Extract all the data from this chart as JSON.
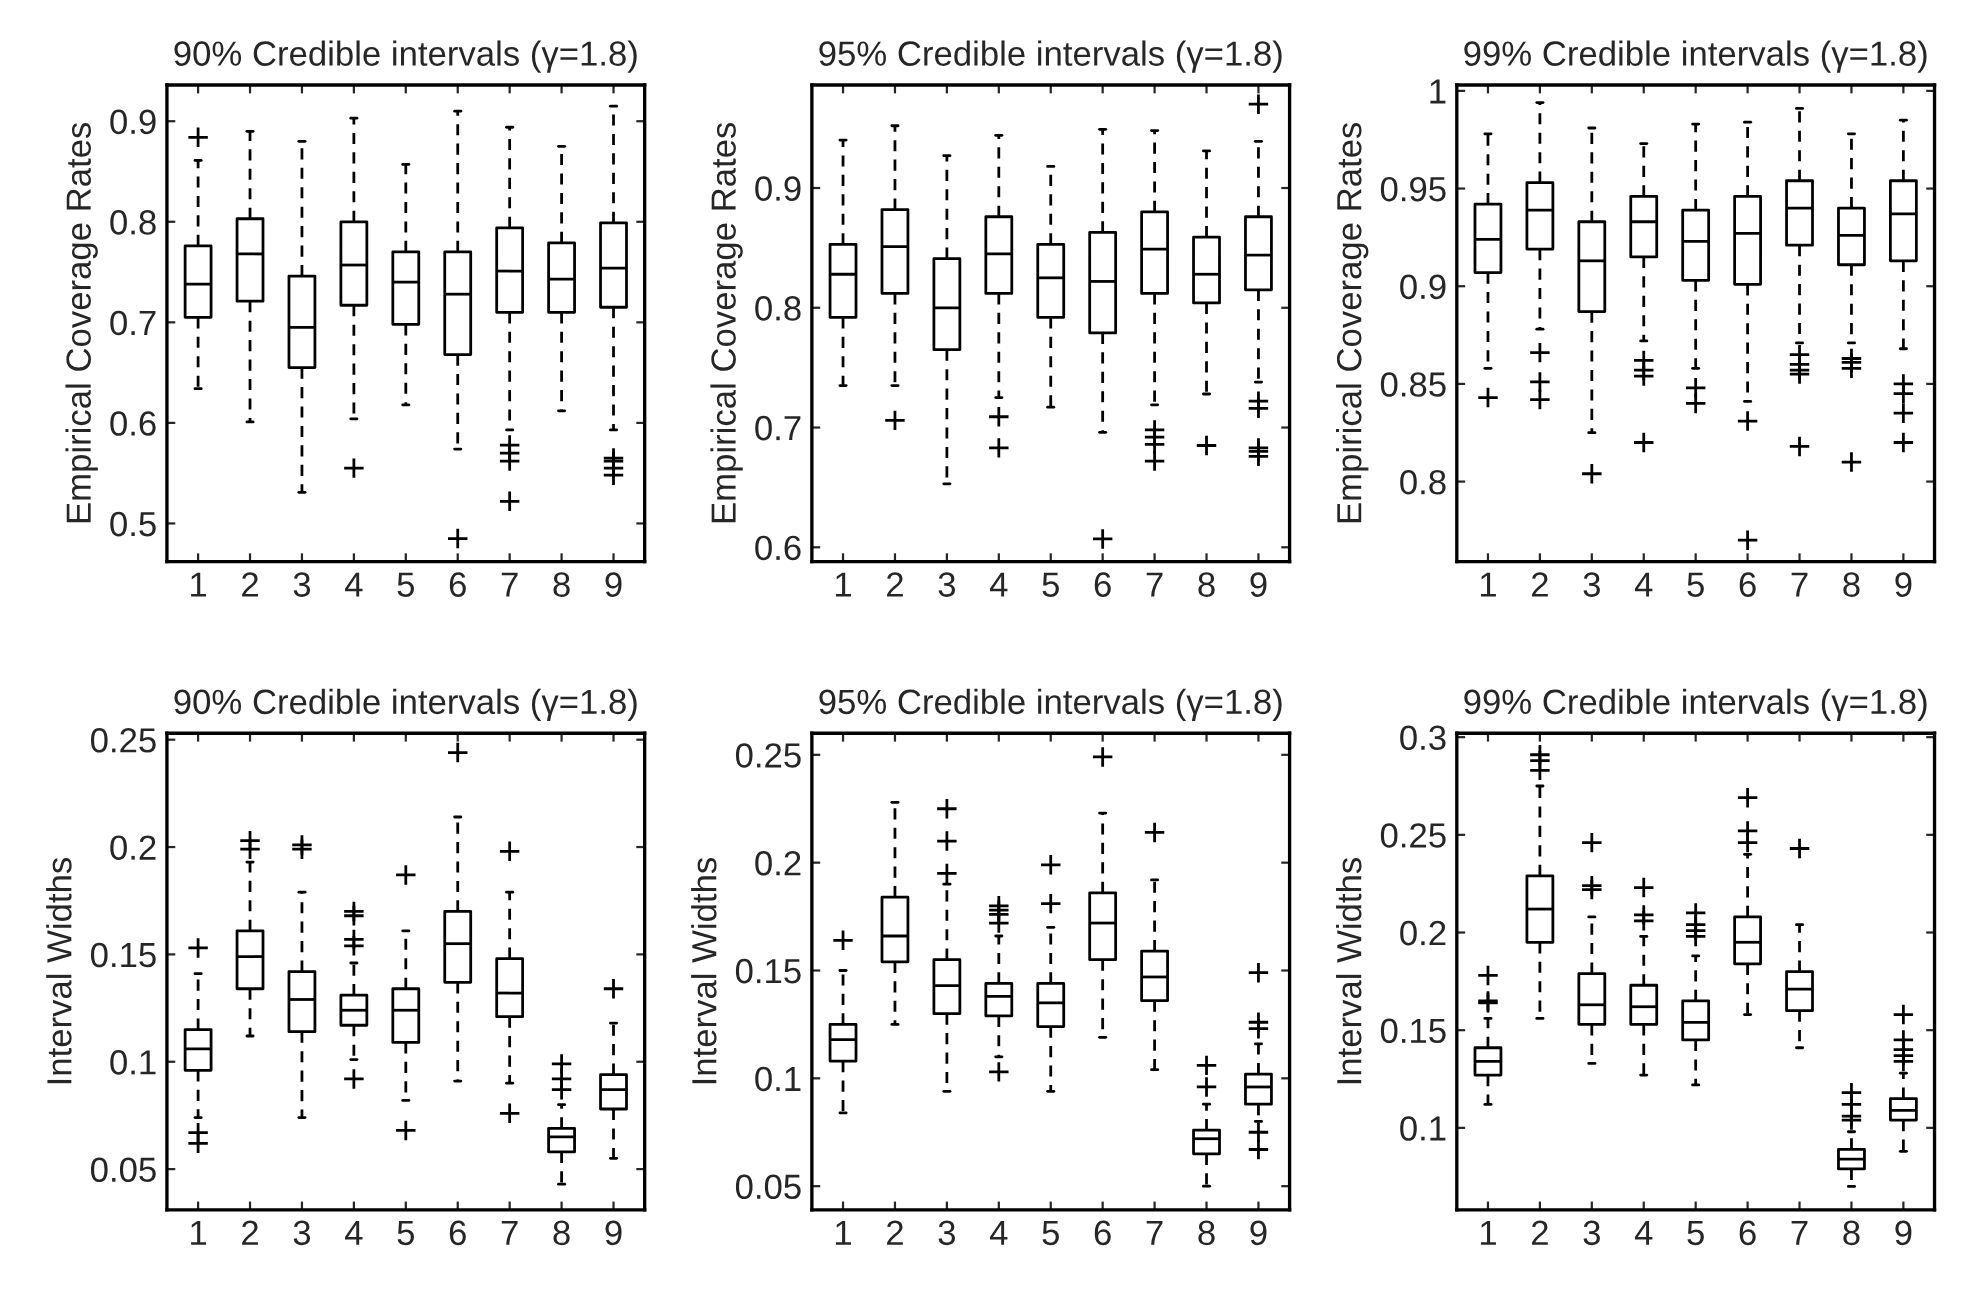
{
  "chart_data": [
    {
      "type": "box",
      "title": "90% Credible intervals (γ=1.8)",
      "ylabel": "Empirical Coverage Rates",
      "categories": [
        "1",
        "2",
        "3",
        "4",
        "5",
        "6",
        "7",
        "8",
        "9"
      ],
      "ylim": [
        0.462,
        0.936
      ],
      "yticks": [
        0.5,
        0.6,
        0.7,
        0.8,
        0.9
      ],
      "grid": false,
      "boxes": [
        {
          "low": 0.634,
          "q1": 0.705,
          "median": 0.738,
          "q3": 0.776,
          "high": 0.861,
          "outliers": [
            0.884
          ]
        },
        {
          "low": 0.601,
          "q1": 0.721,
          "median": 0.768,
          "q3": 0.803,
          "high": 0.89
        },
        {
          "low": 0.531,
          "q1": 0.655,
          "median": 0.695,
          "q3": 0.746,
          "high": 0.88
        },
        {
          "low": 0.604,
          "q1": 0.717,
          "median": 0.757,
          "q3": 0.8,
          "high": 0.903,
          "outliers": [
            0.555
          ]
        },
        {
          "low": 0.618,
          "q1": 0.698,
          "median": 0.74,
          "q3": 0.77,
          "high": 0.857
        },
        {
          "low": 0.574,
          "q1": 0.668,
          "median": 0.728,
          "q3": 0.77,
          "high": 0.91,
          "outliers": [
            0.485
          ]
        },
        {
          "low": 0.593,
          "q1": 0.71,
          "median": 0.751,
          "q3": 0.794,
          "high": 0.894,
          "outliers": [
            0.578,
            0.57,
            0.562,
            0.522
          ]
        },
        {
          "low": 0.612,
          "q1": 0.71,
          "median": 0.743,
          "q3": 0.779,
          "high": 0.875
        },
        {
          "low": 0.593,
          "q1": 0.715,
          "median": 0.754,
          "q3": 0.799,
          "high": 0.915,
          "outliers": [
            0.565,
            0.562,
            0.555,
            0.548
          ]
        }
      ]
    },
    {
      "type": "box",
      "title": "95% Credible intervals (γ=1.8)",
      "ylabel": "Empirical Coverage Rates",
      "categories": [
        "1",
        "2",
        "3",
        "4",
        "5",
        "6",
        "7",
        "8",
        "9"
      ],
      "ylim": [
        0.588,
        0.986
      ],
      "yticks": [
        0.6,
        0.7,
        0.8,
        0.9
      ],
      "grid": false,
      "boxes": [
        {
          "low": 0.735,
          "q1": 0.792,
          "median": 0.828,
          "q3": 0.853,
          "high": 0.94
        },
        {
          "low": 0.735,
          "q1": 0.812,
          "median": 0.851,
          "q3": 0.882,
          "high": 0.952,
          "outliers": [
            0.706
          ]
        },
        {
          "low": 0.653,
          "q1": 0.765,
          "median": 0.8,
          "q3": 0.841,
          "high": 0.927
        },
        {
          "low": 0.725,
          "q1": 0.812,
          "median": 0.845,
          "q3": 0.876,
          "high": 0.944,
          "outliers": [
            0.709,
            0.683
          ]
        },
        {
          "low": 0.717,
          "q1": 0.792,
          "median": 0.825,
          "q3": 0.853,
          "high": 0.918
        },
        {
          "low": 0.696,
          "q1": 0.779,
          "median": 0.822,
          "q3": 0.863,
          "high": 0.949,
          "outliers": [
            0.607
          ]
        },
        {
          "low": 0.719,
          "q1": 0.812,
          "median": 0.849,
          "q3": 0.88,
          "high": 0.948,
          "outliers": [
            0.698,
            0.692,
            0.686,
            0.672
          ]
        },
        {
          "low": 0.728,
          "q1": 0.804,
          "median": 0.828,
          "q3": 0.859,
          "high": 0.931,
          "outliers": [
            0.685
          ]
        },
        {
          "low": 0.738,
          "q1": 0.815,
          "median": 0.844,
          "q3": 0.876,
          "high": 0.939,
          "outliers": [
            0.97,
            0.722,
            0.716,
            0.683,
            0.68,
            0.676
          ]
        }
      ]
    },
    {
      "type": "box",
      "title": "99% Credible intervals (γ=1.8)",
      "ylabel": "Empirical Coverage Rates",
      "categories": [
        "1",
        "2",
        "3",
        "4",
        "5",
        "6",
        "7",
        "8",
        "9"
      ],
      "ylim": [
        0.759,
        1.003
      ],
      "yticks": [
        0.8,
        0.85,
        0.9,
        0.95,
        1
      ],
      "grid": false,
      "boxes": [
        {
          "low": 0.858,
          "q1": 0.907,
          "median": 0.924,
          "q3": 0.942,
          "high": 0.978,
          "outliers": [
            0.843
          ]
        },
        {
          "low": 0.878,
          "q1": 0.919,
          "median": 0.939,
          "q3": 0.953,
          "high": 0.994,
          "outliers": [
            0.866,
            0.851,
            0.842
          ]
        },
        {
          "low": 0.825,
          "q1": 0.887,
          "median": 0.913,
          "q3": 0.933,
          "high": 0.981,
          "outliers": [
            0.804
          ]
        },
        {
          "low": 0.872,
          "q1": 0.915,
          "median": 0.933,
          "q3": 0.946,
          "high": 0.973,
          "outliers": [
            0.862,
            0.857,
            0.854,
            0.82
          ]
        },
        {
          "low": 0.858,
          "q1": 0.903,
          "median": 0.923,
          "q3": 0.939,
          "high": 0.983,
          "outliers": [
            0.848,
            0.84
          ]
        },
        {
          "low": 0.841,
          "q1": 0.901,
          "median": 0.927,
          "q3": 0.946,
          "high": 0.984,
          "outliers": [
            0.831,
            0.77
          ]
        },
        {
          "low": 0.871,
          "q1": 0.921,
          "median": 0.94,
          "q3": 0.954,
          "high": 0.991,
          "outliers": [
            0.865,
            0.86,
            0.857,
            0.855,
            0.818
          ]
        },
        {
          "low": 0.871,
          "q1": 0.911,
          "median": 0.926,
          "q3": 0.94,
          "high": 0.978,
          "outliers": [
            0.863,
            0.861,
            0.858,
            0.81
          ]
        },
        {
          "low": 0.868,
          "q1": 0.913,
          "median": 0.937,
          "q3": 0.954,
          "high": 0.985,
          "outliers": [
            0.85,
            0.845,
            0.835,
            0.82
          ]
        }
      ]
    },
    {
      "type": "box",
      "title": "90% Credible intervals (γ=1.8)",
      "ylabel": "Interval Widths",
      "categories": [
        "1",
        "2",
        "3",
        "4",
        "5",
        "6",
        "7",
        "8",
        "9"
      ],
      "ylim": [
        0.031,
        0.253
      ],
      "yticks": [
        0.05,
        0.1,
        0.15,
        0.2,
        0.25
      ],
      "grid": false,
      "boxes": [
        {
          "low": 0.074,
          "q1": 0.096,
          "median": 0.106,
          "q3": 0.115,
          "high": 0.141,
          "outliers": [
            0.153,
            0.067,
            0.062
          ]
        },
        {
          "low": 0.112,
          "q1": 0.134,
          "median": 0.149,
          "q3": 0.161,
          "high": 0.193,
          "outliers": [
            0.203,
            0.199
          ]
        },
        {
          "low": 0.074,
          "q1": 0.114,
          "median": 0.129,
          "q3": 0.142,
          "high": 0.179,
          "outliers": [
            0.201,
            0.199
          ]
        },
        {
          "low": 0.101,
          "q1": 0.117,
          "median": 0.124,
          "q3": 0.131,
          "high": 0.146,
          "outliers": [
            0.17,
            0.168,
            0.157,
            0.154,
            0.092
          ]
        },
        {
          "low": 0.082,
          "q1": 0.109,
          "median": 0.124,
          "q3": 0.134,
          "high": 0.161,
          "outliers": [
            0.187,
            0.068
          ]
        },
        {
          "low": 0.091,
          "q1": 0.137,
          "median": 0.155,
          "q3": 0.17,
          "high": 0.214,
          "outliers": [
            0.244
          ]
        },
        {
          "low": 0.09,
          "q1": 0.121,
          "median": 0.132,
          "q3": 0.148,
          "high": 0.179,
          "outliers": [
            0.198,
            0.076
          ]
        },
        {
          "low": 0.043,
          "q1": 0.058,
          "median": 0.065,
          "q3": 0.069,
          "high": 0.08,
          "outliers": [
            0.099,
            0.092,
            0.087
          ]
        },
        {
          "low": 0.055,
          "q1": 0.078,
          "median": 0.087,
          "q3": 0.094,
          "high": 0.118,
          "outliers": [
            0.134
          ]
        }
      ]
    },
    {
      "type": "box",
      "title": "95% Credible intervals (γ=1.8)",
      "ylabel": "Interval Widths",
      "categories": [
        "1",
        "2",
        "3",
        "4",
        "5",
        "6",
        "7",
        "8",
        "9"
      ],
      "ylim": [
        0.039,
        0.26
      ],
      "yticks": [
        0.05,
        0.1,
        0.15,
        0.2,
        0.25
      ],
      "grid": false,
      "boxes": [
        {
          "low": 0.084,
          "q1": 0.108,
          "median": 0.118,
          "q3": 0.125,
          "high": 0.15,
          "outliers": [
            0.164
          ]
        },
        {
          "low": 0.125,
          "q1": 0.154,
          "median": 0.166,
          "q3": 0.184,
          "high": 0.228
        },
        {
          "low": 0.094,
          "q1": 0.13,
          "median": 0.143,
          "q3": 0.155,
          "high": 0.19,
          "outliers": [
            0.225,
            0.21,
            0.195
          ]
        },
        {
          "low": 0.11,
          "q1": 0.129,
          "median": 0.138,
          "q3": 0.144,
          "high": 0.166,
          "outliers": [
            0.18,
            0.178,
            0.176,
            0.172,
            0.103
          ]
        },
        {
          "low": 0.094,
          "q1": 0.124,
          "median": 0.135,
          "q3": 0.144,
          "high": 0.17,
          "outliers": [
            0.199,
            0.181
          ]
        },
        {
          "low": 0.119,
          "q1": 0.155,
          "median": 0.172,
          "q3": 0.186,
          "high": 0.223,
          "outliers": [
            0.249
          ]
        },
        {
          "low": 0.104,
          "q1": 0.136,
          "median": 0.147,
          "q3": 0.159,
          "high": 0.192,
          "outliers": [
            0.214
          ]
        },
        {
          "low": 0.05,
          "q1": 0.065,
          "median": 0.072,
          "q3": 0.076,
          "high": 0.088,
          "outliers": [
            0.106,
            0.096
          ]
        },
        {
          "low": 0.08,
          "q1": 0.088,
          "median": 0.096,
          "q3": 0.102,
          "high": 0.116,
          "outliers": [
            0.149,
            0.126,
            0.123,
            0.075,
            0.067
          ]
        }
      ]
    },
    {
      "type": "box",
      "title": "99% Credible intervals (γ=1.8)",
      "ylabel": "Interval Widths",
      "categories": [
        "1",
        "2",
        "3",
        "4",
        "5",
        "6",
        "7",
        "8",
        "9"
      ],
      "ylim": [
        0.058,
        0.302
      ],
      "yticks": [
        0.1,
        0.15,
        0.2,
        0.25,
        0.3
      ],
      "grid": false,
      "boxes": [
        {
          "low": 0.112,
          "q1": 0.127,
          "median": 0.134,
          "q3": 0.141,
          "high": 0.156,
          "outliers": [
            0.178,
            0.165,
            0.164
          ]
        },
        {
          "low": 0.156,
          "q1": 0.195,
          "median": 0.212,
          "q3": 0.229,
          "high": 0.275,
          "outliers": [
            0.291,
            0.288,
            0.283
          ]
        },
        {
          "low": 0.133,
          "q1": 0.153,
          "median": 0.163,
          "q3": 0.179,
          "high": 0.208,
          "outliers": [
            0.246,
            0.224,
            0.222
          ]
        },
        {
          "low": 0.127,
          "q1": 0.153,
          "median": 0.162,
          "q3": 0.173,
          "high": 0.198,
          "outliers": [
            0.223,
            0.209,
            0.206
          ]
        },
        {
          "low": 0.122,
          "q1": 0.145,
          "median": 0.154,
          "q3": 0.165,
          "high": 0.188,
          "outliers": [
            0.21,
            0.204,
            0.201,
            0.198
          ]
        },
        {
          "low": 0.158,
          "q1": 0.184,
          "median": 0.195,
          "q3": 0.208,
          "high": 0.24,
          "outliers": [
            0.269,
            0.252,
            0.246
          ]
        },
        {
          "low": 0.141,
          "q1": 0.16,
          "median": 0.171,
          "q3": 0.18,
          "high": 0.204,
          "outliers": [
            0.243
          ]
        },
        {
          "low": 0.07,
          "q1": 0.079,
          "median": 0.084,
          "q3": 0.089,
          "high": 0.098,
          "outliers": [
            0.118,
            0.112,
            0.106,
            0.104
          ]
        },
        {
          "low": 0.088,
          "q1": 0.104,
          "median": 0.109,
          "q3": 0.115,
          "high": 0.128,
          "outliers": [
            0.158,
            0.145,
            0.14,
            0.137,
            0.134
          ]
        }
      ]
    }
  ]
}
